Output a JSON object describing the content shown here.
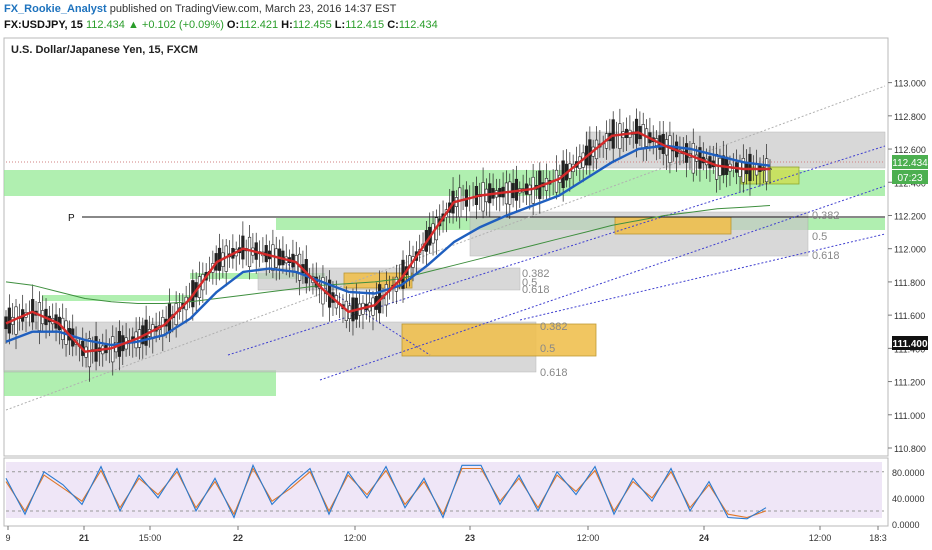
{
  "header": {
    "author": "FX_Rookie_Analyst",
    "published": "published on TradingView.com, March 23, 2016 14:37 EST",
    "symbol": "FX:USDJPY, 15",
    "last": "112.434",
    "arrow": "▲",
    "change": "+0.102 (+0.09%)",
    "o_label": "O:",
    "o": "112.421",
    "h_label": "H:",
    "h": "112.455",
    "l_label": "L:",
    "l": "112.415",
    "c_label": "C:",
    "c": "112.434"
  },
  "chart_data": {
    "type": "line",
    "title": "U.S. Dollar/Japanese Yen, 15, FXCM",
    "ylim": [
      110.8,
      113.1
    ],
    "y_ticks": [
      "113.000",
      "112.800",
      "112.600",
      "112.400",
      "112.200",
      "112.000",
      "111.800",
      "111.600",
      "111.400",
      "111.200",
      "111.000",
      "110.800"
    ],
    "x_ticks": [
      "9",
      "21",
      "15:00",
      "22",
      "12:00",
      "23",
      "12:00",
      "24",
      "12:00",
      "18:3"
    ],
    "series": [
      {
        "name": "",
        "color": "#d42a2a",
        "x": [
          0,
          14,
          28,
          42,
          56,
          70,
          84,
          98,
          112,
          126,
          140,
          154,
          168,
          182,
          196,
          210,
          224,
          238,
          252,
          266,
          280,
          294,
          308,
          322,
          336,
          350,
          364,
          378,
          392,
          406
        ],
        "values": [
          111.55,
          111.62,
          111.55,
          111.38,
          111.4,
          111.46,
          111.54,
          111.7,
          111.92,
          112.0,
          111.96,
          111.92,
          111.76,
          111.62,
          111.66,
          111.82,
          112.05,
          112.28,
          112.32,
          112.34,
          112.36,
          112.42,
          112.55,
          112.68,
          112.7,
          112.62,
          112.56,
          112.5,
          112.48,
          112.48
        ]
      },
      {
        "name": "",
        "color": "#1f5fbf",
        "x": [
          0,
          14,
          28,
          42,
          56,
          70,
          84,
          98,
          112,
          126,
          140,
          154,
          168,
          182,
          196,
          210,
          224,
          238,
          252,
          266,
          280,
          294,
          308,
          322,
          336,
          350,
          364,
          378,
          392,
          406
        ],
        "values": [
          111.44,
          111.5,
          111.5,
          111.45,
          111.42,
          111.44,
          111.48,
          111.58,
          111.74,
          111.86,
          111.88,
          111.86,
          111.8,
          111.74,
          111.73,
          111.78,
          111.9,
          112.04,
          112.13,
          112.2,
          112.26,
          112.32,
          112.42,
          112.52,
          112.6,
          112.62,
          112.6,
          112.56,
          112.52,
          112.5
        ]
      },
      {
        "name": "",
        "color": "#3f8f3f",
        "x": [
          0,
          14,
          28,
          42,
          56,
          70,
          84,
          98,
          112,
          126,
          140,
          154,
          168,
          182,
          196,
          210,
          224,
          238,
          252,
          266,
          280,
          294,
          308,
          322,
          336,
          350,
          364,
          378,
          392,
          406
        ],
        "values": [
          111.8,
          111.78,
          111.74,
          111.7,
          111.68,
          111.67,
          111.67,
          111.68,
          111.7,
          111.72,
          111.74,
          111.76,
          111.78,
          111.79,
          111.8,
          111.82,
          111.86,
          111.9,
          111.94,
          111.98,
          112.02,
          112.06,
          112.1,
          112.14,
          112.17,
          112.2,
          112.22,
          112.24,
          112.25,
          112.26
        ]
      }
    ],
    "last_price_label": "112.434",
    "timer_label": "07:23",
    "level_label": "111.400",
    "fib_labels": [
      "0.382",
      "0.5",
      "0.618",
      "0.382",
      "0.5",
      "0.618",
      "0.382",
      "0.5",
      "0.618"
    ],
    "pivot_label": "P",
    "stochastic": {
      "ylim": [
        0,
        95
      ],
      "y_ticks": [
        "80.0000",
        "40.0000",
        "0.0000"
      ],
      "k_values": [
        70,
        15,
        80,
        60,
        30,
        88,
        20,
        75,
        40,
        85,
        20,
        70,
        10,
        90,
        30,
        60,
        85,
        15,
        80,
        40,
        88,
        25,
        70,
        10,
        90,
        90,
        30,
        75,
        20,
        80,
        45,
        88,
        15,
        70,
        35,
        85,
        20,
        65,
        10,
        8,
        25
      ],
      "d_values": [
        65,
        20,
        75,
        55,
        35,
        82,
        25,
        70,
        45,
        80,
        25,
        65,
        15,
        85,
        35,
        55,
        80,
        20,
        75,
        45,
        82,
        30,
        65,
        15,
        85,
        85,
        35,
        70,
        25,
        75,
        50,
        82,
        20,
        65,
        40,
        80,
        25,
        60,
        15,
        10,
        20
      ]
    }
  }
}
